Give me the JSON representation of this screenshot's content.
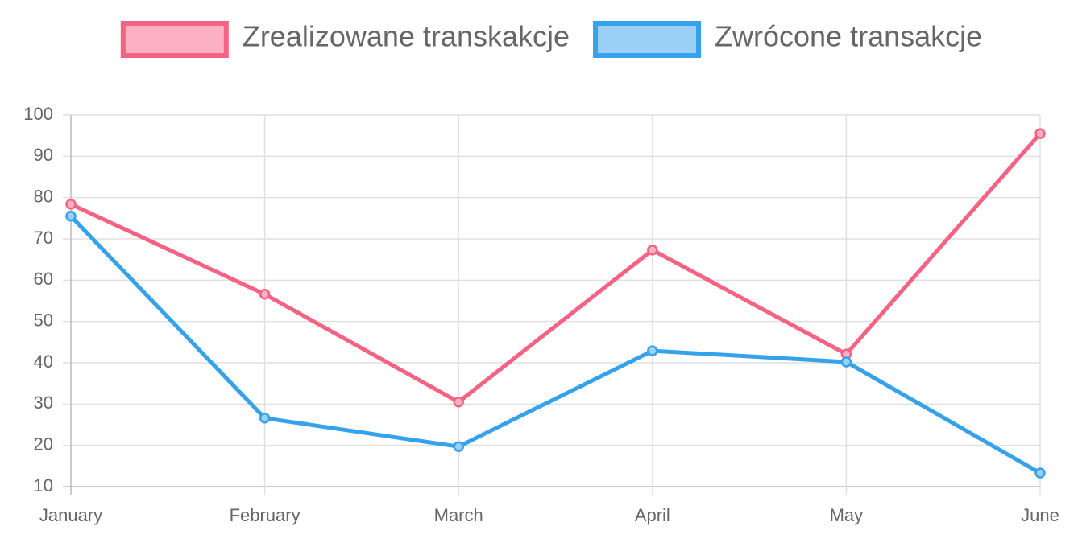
{
  "chart_data": {
    "type": "line",
    "categories": [
      "January",
      "February",
      "March",
      "April",
      "May",
      "June"
    ],
    "series": [
      {
        "name": "Zrealizowane transkakcje",
        "color": "#f56384",
        "fill": "#fbb1c1",
        "values": [
          78.4,
          56.6,
          30.5,
          67.3,
          42.1,
          95.5
        ]
      },
      {
        "name": "Zwrócone transakcje",
        "color": "#36a2eb",
        "fill": "#9ad0f5",
        "values": [
          75.5,
          26.6,
          19.7,
          42.9,
          40.2,
          13.3
        ]
      }
    ],
    "ylim": [
      10,
      100
    ],
    "yticks": [
      10,
      20,
      30,
      40,
      50,
      60,
      70,
      80,
      90,
      100
    ],
    "grid": true,
    "legend": "top"
  }
}
